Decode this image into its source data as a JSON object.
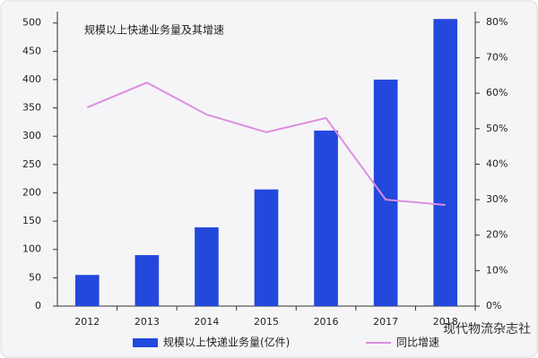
{
  "chart_data": {
    "type": "bar-line",
    "title": "规模以上快递业务量及其增速",
    "categories": [
      "2012",
      "2013",
      "2014",
      "2015",
      "2016",
      "2017",
      "2018"
    ],
    "series": [
      {
        "name": "规模以上快递业务量(亿件)",
        "type": "bar",
        "color": "#2348dc",
        "values": [
          55,
          90,
          139,
          206,
          310,
          400,
          507
        ]
      },
      {
        "name": "同比增速",
        "type": "line",
        "axis": "y2",
        "color": "#dc8ee0",
        "values": [
          56,
          63,
          54,
          49,
          53,
          30,
          28.5
        ]
      }
    ],
    "ylim": [
      0,
      520
    ],
    "yticks": [
      0,
      50,
      100,
      150,
      200,
      250,
      300,
      350,
      400,
      450,
      500
    ],
    "y2lim": [
      0,
      83
    ],
    "y2ticks": [
      {
        "value": 0,
        "label": "0%"
      },
      {
        "value": 10,
        "label": "10%"
      },
      {
        "value": 20,
        "label": "20%"
      },
      {
        "value": 30,
        "label": "30%"
      },
      {
        "value": 40,
        "label": "40%"
      },
      {
        "value": 50,
        "label": "50%"
      },
      {
        "value": 60,
        "label": "60%"
      },
      {
        "value": 70,
        "label": "70%"
      },
      {
        "value": 80,
        "label": "80%"
      }
    ],
    "watermark": "现代物流杂志社"
  }
}
